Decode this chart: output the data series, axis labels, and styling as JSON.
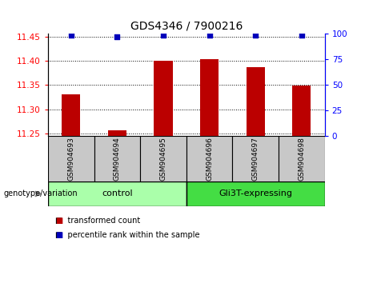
{
  "title": "GDS4346 / 7900216",
  "samples": [
    "GSM904693",
    "GSM904694",
    "GSM904695",
    "GSM904696",
    "GSM904697",
    "GSM904698"
  ],
  "red_values": [
    11.33,
    11.257,
    11.4,
    11.403,
    11.387,
    11.348
  ],
  "blue_values": [
    99,
    97,
    99,
    99,
    99,
    99
  ],
  "ylim_left": [
    11.245,
    11.455
  ],
  "ylim_right": [
    0,
    100
  ],
  "yticks_left": [
    11.25,
    11.3,
    11.35,
    11.4,
    11.45
  ],
  "yticks_right": [
    0,
    25,
    50,
    75,
    100
  ],
  "groups": [
    {
      "label": "control",
      "indices": [
        0,
        1,
        2
      ],
      "color": "#AAFFAA"
    },
    {
      "label": "Gli3T-expressing",
      "indices": [
        3,
        4,
        5
      ],
      "color": "#44DD44"
    }
  ],
  "bar_color": "#BB0000",
  "blue_color": "#0000BB",
  "bar_width": 0.4,
  "cell_bg_color": "#C8C8C8",
  "legend_red_label": "transformed count",
  "legend_blue_label": "percentile rank within the sample",
  "xlabel_area_label": "genotype/variation"
}
